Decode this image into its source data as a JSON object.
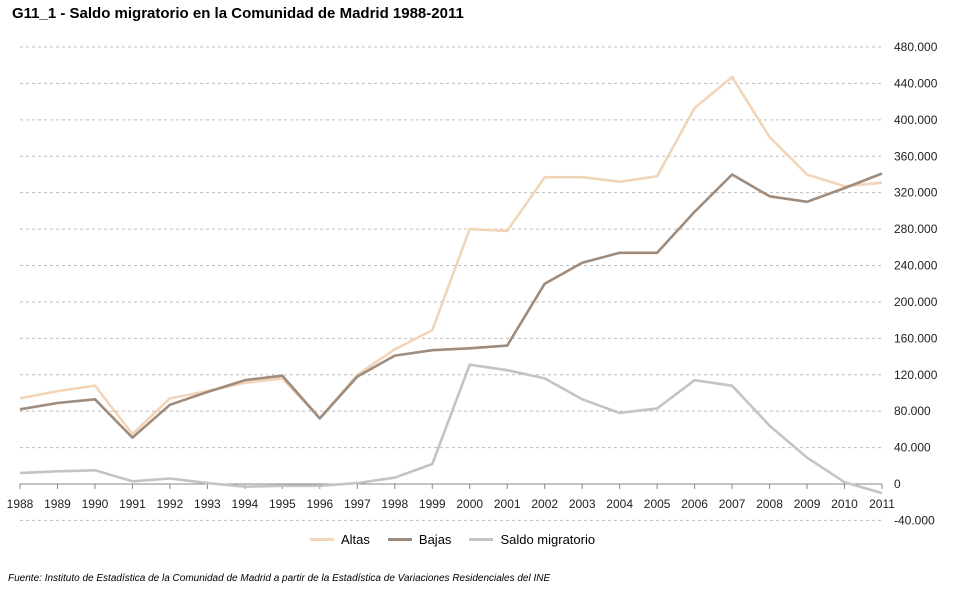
{
  "chart_data": {
    "type": "line",
    "title": "G11_1 - Saldo migratorio en la Comunidad de Madrid 1988-2011",
    "x": [
      "1988",
      "1989",
      "1990",
      "1991",
      "1992",
      "1993",
      "1994",
      "1995",
      "1996",
      "1997",
      "1998",
      "1999",
      "2000",
      "2001",
      "2002",
      "2003",
      "2004",
      "2005",
      "2006",
      "2007",
      "2008",
      "2009",
      "2010",
      "2011"
    ],
    "ylim": [
      -40000,
      480000
    ],
    "yticks": [
      -40000,
      0,
      40000,
      80000,
      120000,
      160000,
      200000,
      240000,
      280000,
      320000,
      360000,
      400000,
      440000,
      480000
    ],
    "ytick_labels": [
      "-40.000",
      "0",
      "40.000",
      "80.000",
      "120.000",
      "160.000",
      "200.000",
      "240.000",
      "280.000",
      "320.000",
      "360.000",
      "400.000",
      "440.000",
      "480.000"
    ],
    "yaxis_position": "right",
    "grid": true,
    "legend_position": "bottom",
    "series": [
      {
        "name": "Altas",
        "color": "#f2d5b8",
        "values": [
          94000,
          102000,
          108000,
          55000,
          94000,
          102000,
          111000,
          116000,
          72000,
          120000,
          148000,
          169000,
          280000,
          278000,
          337000,
          337000,
          332000,
          338000,
          413000,
          447000,
          381000,
          340000,
          327000,
          331000
        ]
      },
      {
        "name": "Bajas",
        "color": "#a08c7c",
        "values": [
          82000,
          89000,
          93000,
          51000,
          87000,
          101000,
          114000,
          119000,
          72000,
          118000,
          141000,
          147000,
          149000,
          152000,
          220000,
          243000,
          254000,
          254000,
          299000,
          340000,
          316000,
          310000,
          325000,
          341000
        ]
      },
      {
        "name": "Saldo migratorio",
        "color": "#c4c4c4",
        "values": [
          12000,
          14000,
          15000,
          3000,
          6000,
          1000,
          -3000,
          -2000,
          -2000,
          1000,
          7000,
          22000,
          131000,
          125000,
          116000,
          93000,
          78000,
          83000,
          114000,
          108000,
          64000,
          29000,
          2000,
          -10000
        ]
      }
    ]
  },
  "source": "Fuente: Instituto de Estadística de la Comunidad de Madrid a partir de la Estadística de Variaciones Residenciales del INE"
}
